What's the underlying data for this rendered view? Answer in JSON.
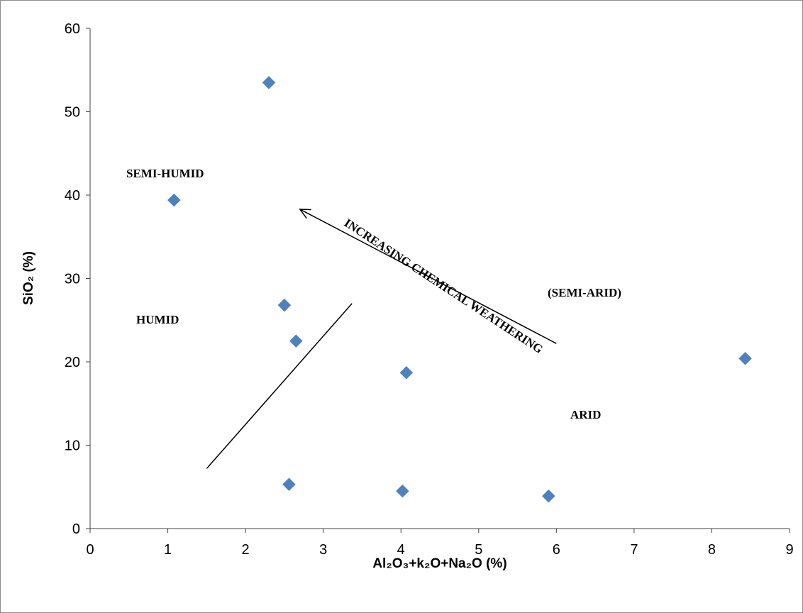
{
  "chart_data": {
    "type": "scatter",
    "title": "",
    "xlabel": "Al₂O₃+k₂O+Na₂O (%)",
    "ylabel": "SiO₂ (%)",
    "xlim": [
      0,
      9
    ],
    "ylim": [
      0,
      60
    ],
    "xticks": [
      0,
      1,
      2,
      3,
      4,
      5,
      6,
      7,
      8,
      9
    ],
    "yticks": [
      0,
      10,
      20,
      30,
      40,
      50,
      60
    ],
    "grid": false,
    "legend": "none",
    "marker": "diamond",
    "series": [
      {
        "color": "#4f81bd",
        "points": [
          {
            "x": 2.3,
            "y": 53.5
          },
          {
            "x": 1.08,
            "y": 39.4
          },
          {
            "x": 2.5,
            "y": 26.8
          },
          {
            "x": 2.65,
            "y": 22.5
          },
          {
            "x": 4.07,
            "y": 18.7
          },
          {
            "x": 8.43,
            "y": 20.4
          },
          {
            "x": 2.56,
            "y": 5.3
          },
          {
            "x": 4.02,
            "y": 4.5
          },
          {
            "x": 5.9,
            "y": 3.9
          }
        ]
      }
    ],
    "annotations": {
      "semi_humid": "SEMI-HUMID",
      "humid": "HUMID",
      "semi_arid": "(SEMI-ARID)",
      "arid": "ARID",
      "weathering": "INCREASING CHEMICAL WEATHERING"
    },
    "boundary_line": {
      "from": {
        "x": 1.5,
        "y": 7.2
      },
      "to": {
        "x": 3.37,
        "y": 27
      }
    },
    "weathering_arrow": {
      "from": {
        "x": 6.0,
        "y": 22.2
      },
      "to": {
        "x": 2.7,
        "y": 38.3
      }
    }
  }
}
